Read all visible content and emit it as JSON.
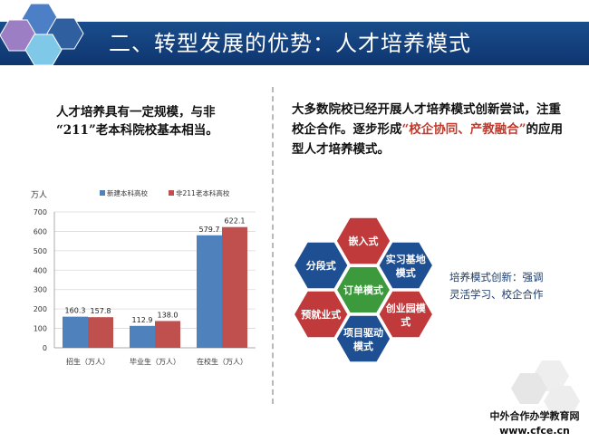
{
  "header": {
    "title": "二、转型发展的优势：人才培养模式"
  },
  "left_panel": {
    "text_line1": "人才培养具有一定规模，与非",
    "text_line2": "“211”老本科院校基本相当。"
  },
  "right_panel": {
    "text_part1": "大多数院校已经开展人才培养模式创新尝试，注重校企合作。逐步形成",
    "text_highlight": "“校企协同、产教融合”",
    "text_part2": "的应用型人才培养模式。"
  },
  "chart_data": {
    "type": "bar",
    "ylabel": "万人",
    "ylim": [
      0,
      700
    ],
    "yticks": [
      0,
      100,
      200,
      300,
      400,
      500,
      600,
      700
    ],
    "categories": [
      "招生（万人）",
      "毕业生（万人）",
      "在校生（万人）"
    ],
    "series": [
      {
        "name": "新建本科高校",
        "values": [
          160.3,
          112.9,
          579.7
        ],
        "color": "#4f81bd"
      },
      {
        "name": "非211老本科高校",
        "values": [
          157.8,
          138.0,
          622.1
        ],
        "color": "#c0504d"
      }
    ],
    "value_labels": [
      [
        "160.3",
        "112.9",
        "579.7"
      ],
      [
        "157.8",
        "138.0",
        "622.1"
      ]
    ],
    "legend_position": "top",
    "grid": true
  },
  "modes": {
    "center": "订单模式",
    "items": [
      "嵌入式",
      "实习基地模式",
      "创业园模式",
      "项目驱动模式",
      "预就业式",
      "分段式"
    ],
    "colors": {
      "center": "#3c9a3c",
      "red": "#c0393b",
      "blue": "#1f4f93"
    }
  },
  "mode_note": {
    "line1": "培养模式创新：强调",
    "line2": "灵活学习、校企合作"
  },
  "watermark": {
    "line1": "中外合作办学教育网",
    "line2": "www.cfce.cn"
  }
}
